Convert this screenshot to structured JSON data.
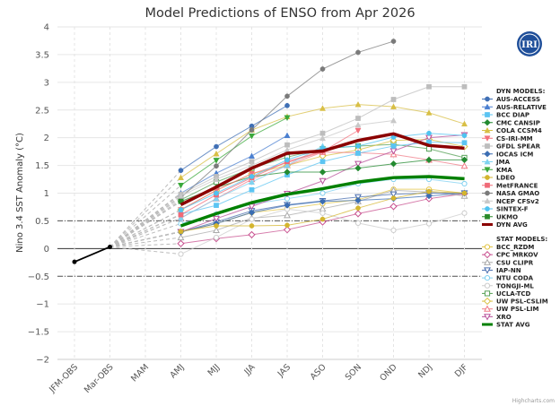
{
  "chart_data": {
    "type": "line",
    "title": "Model Predictions of ENSO from Apr 2026",
    "ylabel": "Nino 3.4 SST Anomaly (°C)",
    "xlabel": "",
    "ylim": [
      -2,
      4
    ],
    "ytick_step": 0.5,
    "yticks": [
      "4",
      "3.5",
      "3",
      "2.5",
      "2",
      "1.5",
      "1",
      "0.5",
      "0",
      "−0.5",
      "−1",
      "−1.5",
      "−2"
    ],
    "categories": [
      "JFM-OBS",
      "Mar-OBS",
      "MAM",
      "AMJ",
      "MJJ",
      "JJA",
      "JAS",
      "ASO",
      "SON",
      "OND",
      "NDJ",
      "DJF"
    ],
    "reference_lines": [
      0.5,
      -0.5
    ],
    "grid": true,
    "legend_position": "right",
    "credit": "Highcharts.com",
    "logo_text": "IRI",
    "observed": {
      "color": "#000000",
      "values": [
        -0.24,
        0.03
      ]
    },
    "forecast_start_index": 3,
    "dyn_header": "DYN MODELS:",
    "stat_header": "STAT MODELS:",
    "dyn_models": [
      {
        "name": "AUS-ACCESS",
        "color": "#3f6fb5",
        "marker": "circle",
        "values": [
          1.41,
          1.84,
          2.21,
          2.58,
          null,
          null,
          null,
          null,
          null
        ]
      },
      {
        "name": "AUS-RELATIVE",
        "color": "#4a7fd0",
        "marker": "triangle",
        "values": [
          1.0,
          1.36,
          1.67,
          2.04,
          null,
          null,
          null,
          null,
          null
        ]
      },
      {
        "name": "BCC DIAP",
        "color": "#5bc4f2",
        "marker": "square",
        "values": [
          0.62,
          0.78,
          1.06,
          1.33,
          1.57,
          1.72,
          1.85,
          1.92,
          1.91
        ]
      },
      {
        "name": "CMC CANSIP",
        "color": "#238a30",
        "marker": "diamond",
        "values": [
          0.85,
          1.1,
          1.3,
          1.38,
          1.38,
          1.45,
          1.53,
          1.6,
          1.6
        ]
      },
      {
        "name": "COLA CCSM4",
        "color": "#d8bf45",
        "marker": "triangle",
        "values": [
          1.28,
          1.71,
          2.14,
          2.38,
          2.53,
          2.6,
          2.56,
          2.45,
          2.25
        ]
      },
      {
        "name": "CS-IRI-MM",
        "color": "#f3707c",
        "marker": "triangle-down",
        "values": [
          0.7,
          1.05,
          1.35,
          1.55,
          1.75,
          2.13,
          null,
          null,
          null
        ]
      },
      {
        "name": "GFDL SPEAR",
        "color": "#bdbdbd",
        "marker": "square",
        "values": [
          0.98,
          1.3,
          1.57,
          1.87,
          2.08,
          2.35,
          2.69,
          2.92,
          2.92
        ]
      },
      {
        "name": "IOCAS ICM",
        "color": "#3a6db3",
        "marker": "diamond",
        "values": [
          0.3,
          0.45,
          0.65,
          0.78,
          0.85,
          0.87,
          0.9,
          0.95,
          1.0
        ]
      },
      {
        "name": "JMA",
        "color": "#7fd3f0",
        "marker": "triangle",
        "values": [
          0.55,
          0.9,
          1.2,
          1.5,
          1.85,
          null,
          null,
          null,
          null
        ]
      },
      {
        "name": "KMA",
        "color": "#3aa83a",
        "marker": "triangle-down",
        "values": [
          1.14,
          1.59,
          2.03,
          2.36,
          null,
          null,
          null,
          null,
          null
        ]
      },
      {
        "name": "LDEO",
        "color": "#d4b52e",
        "marker": "circle",
        "values": [
          0.31,
          0.41,
          0.41,
          0.42,
          0.53,
          0.73,
          0.91,
          1.03,
          1.0
        ]
      },
      {
        "name": "MetFRANCE",
        "color": "#f06a77",
        "marker": "square",
        "values": [
          0.61,
          0.97,
          1.28,
          1.57,
          1.76,
          null,
          null,
          null,
          null
        ]
      },
      {
        "name": "NASA GMAO",
        "color": "#7a7a7a",
        "marker": "circle",
        "values": [
          0.92,
          1.49,
          2.14,
          2.75,
          3.24,
          3.54,
          3.74,
          null,
          null
        ]
      },
      {
        "name": "NCEP CFSv2",
        "color": "#c8c8c8",
        "marker": "triangle",
        "values": [
          0.95,
          1.25,
          1.5,
          1.78,
          1.99,
          2.23,
          2.31,
          null,
          null
        ]
      },
      {
        "name": "SINTEX-F",
        "color": "#4fc3f0",
        "marker": "circle",
        "values": [
          0.7,
          1.0,
          1.3,
          1.6,
          1.81,
          1.85,
          2.01,
          2.08,
          2.04
        ]
      },
      {
        "name": "UKMO",
        "color": "#2a8a2a",
        "marker": "square",
        "values": [
          0.85,
          null,
          null,
          null,
          null,
          null,
          null,
          null,
          null
        ]
      },
      {
        "name": "DYN AVG",
        "color": "#8b0000",
        "marker": "none",
        "width": 3.5,
        "values": [
          0.79,
          1.11,
          1.45,
          1.72,
          1.76,
          1.95,
          2.07,
          1.86,
          1.81
        ]
      }
    ],
    "stat_models": [
      {
        "name": "BCC_RZDM",
        "color": "#e2c445",
        "marker": "circle",
        "values": [
          0.3,
          0.45,
          0.65,
          0.72,
          0.81,
          0.88,
          1.07,
          1.07,
          1.0
        ]
      },
      {
        "name": "CPC MRKOV",
        "color": "#c8508f",
        "marker": "diamond",
        "values": [
          0.09,
          0.18,
          0.25,
          0.34,
          0.48,
          0.63,
          0.76,
          0.9,
          0.99
        ]
      },
      {
        "name": "CSU CLIPR",
        "color": "#aaaaaa",
        "marker": "triangle",
        "values": [
          0.2,
          0.33,
          0.55,
          0.6,
          0.72,
          0.85,
          1.05,
          1.02,
          0.95
        ]
      },
      {
        "name": "IAP-NN",
        "color": "#4a6fb0",
        "marker": "triangle-down",
        "values": [
          0.3,
          0.48,
          0.68,
          0.79,
          0.86,
          0.93,
          0.98,
          1.0,
          1.0
        ]
      },
      {
        "name": "NTU CODA",
        "color": "#7fd0f0",
        "marker": "circle",
        "values": [
          0.45,
          0.62,
          0.8,
          0.9,
          1.0,
          1.17,
          1.25,
          1.25,
          1.17
        ]
      },
      {
        "name": "TONGJI-ML",
        "color": "#cccccc",
        "marker": "circle",
        "values": [
          -0.1,
          0.2,
          0.53,
          0.71,
          0.64,
          0.46,
          0.33,
          0.45,
          0.64
        ]
      },
      {
        "name": "UCLA-TCD",
        "color": "#55a055",
        "marker": "square",
        "values": [
          0.88,
          1.2,
          1.45,
          1.65,
          1.8,
          1.85,
          1.88,
          1.8,
          1.64
        ]
      },
      {
        "name": "UW PSL-CSLIM",
        "color": "#d8c040",
        "marker": "diamond",
        "values": [
          0.7,
          1.05,
          1.35,
          1.5,
          1.67,
          1.78,
          1.95,
          1.97,
          1.84
        ]
      },
      {
        "name": "UW PSL-LIM",
        "color": "#f07c88",
        "marker": "triangle",
        "values": [
          0.55,
          0.9,
          1.25,
          1.5,
          1.74,
          1.73,
          1.7,
          1.6,
          1.49
        ]
      },
      {
        "name": "XRO",
        "color": "#b8509a",
        "marker": "triangle-down",
        "values": [
          0.3,
          0.54,
          0.76,
          0.99,
          1.22,
          1.53,
          1.76,
          2.0,
          2.05
        ]
      },
      {
        "name": "STAT AVG",
        "color": "#008000",
        "marker": "none",
        "width": 3.5,
        "values": [
          0.41,
          0.63,
          0.83,
          0.98,
          1.08,
          1.2,
          1.28,
          1.3,
          1.26
        ]
      }
    ]
  }
}
